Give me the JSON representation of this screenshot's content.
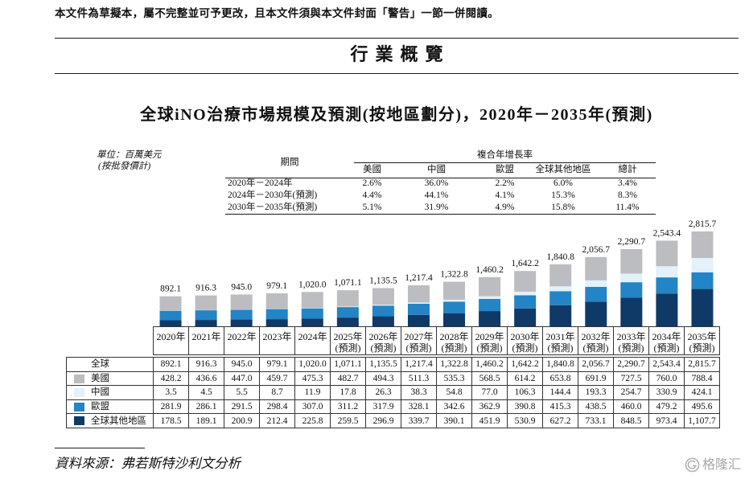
{
  "header": {
    "disclaimer": "本文件為草擬本，屬不完整並可予更改，且本文件須與本文件封面「警告」一節一併閱讀。",
    "section_title": "行業概覽"
  },
  "chart_data": {
    "type": "bar",
    "stacked": true,
    "title": "全球iNO治療市場規模及預測(按地區劃分)，2020年－2035年(預測)",
    "unit": "單位：百萬美元",
    "unit_note": "(按批發價計)",
    "categories": [
      "2020年",
      "2021年",
      "2022年",
      "2023年",
      "2024年",
      "2025年",
      "2026年",
      "2027年",
      "2028年",
      "2029年",
      "2030年",
      "2031年",
      "2032年",
      "2033年",
      "2034年",
      "2035年"
    ],
    "category_notes": [
      null,
      null,
      null,
      null,
      null,
      "(預測)",
      "(預測)",
      "(預測)",
      "(預測)",
      "(預測)",
      "(預測)",
      "(預測)",
      "(預測)",
      "(預測)",
      "(預測)",
      "(預測)"
    ],
    "totals_label": "全球",
    "totals": [
      892.1,
      916.3,
      945.0,
      979.1,
      1020.0,
      1071.1,
      1135.5,
      1217.4,
      1322.8,
      1460.2,
      1642.2,
      1840.8,
      2056.7,
      2290.7,
      2543.4,
      2815.7
    ],
    "series": [
      {
        "name": "美國",
        "color": "#bcbdc1",
        "values": [
          428.2,
          436.6,
          447.0,
          459.7,
          475.3,
          482.7,
          494.3,
          511.3,
          535.3,
          568.5,
          614.2,
          653.8,
          691.9,
          727.5,
          760.0,
          788.4
        ]
      },
      {
        "name": "中國",
        "color": "#e2f1fa",
        "values": [
          3.5,
          4.5,
          5.5,
          8.7,
          11.9,
          17.8,
          26.3,
          38.3,
          54.8,
          77.0,
          106.3,
          144.4,
          193.3,
          254.7,
          330.9,
          424.1
        ]
      },
      {
        "name": "歐盟",
        "color": "#2384c6",
        "values": [
          281.9,
          286.1,
          291.5,
          298.4,
          307.0,
          311.2,
          317.9,
          328.1,
          342.6,
          362.9,
          390.8,
          415.3,
          438.5,
          460.0,
          479.2,
          495.6
        ]
      },
      {
        "name": "全球其他地區",
        "color": "#0f3a68",
        "values": [
          178.5,
          189.1,
          200.9,
          212.4,
          225.8,
          259.5,
          296.9,
          339.7,
          390.1,
          451.9,
          530.9,
          627.2,
          733.1,
          848.5,
          973.4,
          1107.7
        ]
      }
    ],
    "grid": false,
    "legend_position": "bottom"
  },
  "cagr_table": {
    "period_header": "期間",
    "group_header": "複合年增長率",
    "columns": [
      "美國",
      "中國",
      "歐盟",
      "全球其他地區",
      "總計"
    ],
    "rows": [
      {
        "period": "2020年－2024年",
        "values": [
          "2.6%",
          "36.0%",
          "2.2%",
          "6.0%",
          "3.4%"
        ]
      },
      {
        "period": "2024年－2030年(預測)",
        "values": [
          "4.4%",
          "44.1%",
          "4.1%",
          "15.3%",
          "8.3%"
        ]
      },
      {
        "period": "2030年－2035年(預測)",
        "values": [
          "5.1%",
          "31.9%",
          "4.9%",
          "15.8%",
          "11.4%"
        ]
      }
    ]
  },
  "source": {
    "text": "資料來源：弗若斯特沙利文分析"
  },
  "watermark": {
    "text": "格隆汇",
    "icon": "gelonghui-logo-icon"
  }
}
